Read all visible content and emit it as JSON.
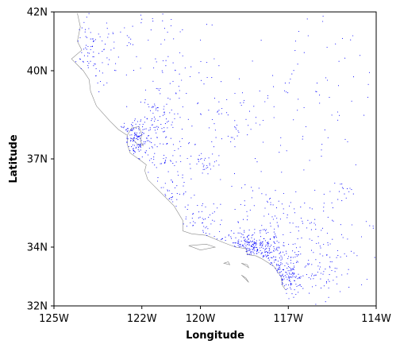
{
  "chart_data": {
    "type": "scatter",
    "title": "",
    "xlabel": "Longitude",
    "ylabel": "Latitude",
    "xlim": [
      -125,
      -114
    ],
    "ylim": [
      32,
      42
    ],
    "xticks": [
      {
        "value": -125,
        "label": "125W"
      },
      {
        "value": -122,
        "label": "122W"
      },
      {
        "value": -120,
        "label": "120W"
      },
      {
        "value": -117,
        "label": "117W"
      },
      {
        "value": -114,
        "label": "114W"
      }
    ],
    "yticks": [
      {
        "value": 32,
        "label": "32N"
      },
      {
        "value": 34,
        "label": "34N"
      },
      {
        "value": 37,
        "label": "37N"
      },
      {
        "value": 40,
        "label": "40N"
      },
      {
        "value": 42,
        "label": "42N"
      }
    ],
    "grid": false,
    "legend": "none",
    "colors": {
      "points": "#0000ff",
      "coastline": "#8a8a8a",
      "axes": "#000000",
      "background": "#ffffff"
    },
    "coastline": [
      [
        -124.2,
        41.95
      ],
      [
        -124.1,
        41.5
      ],
      [
        -124.2,
        41.0
      ],
      [
        -124.05,
        40.7
      ],
      [
        -124.4,
        40.4
      ],
      [
        -124.0,
        40.0
      ],
      [
        -123.8,
        39.7
      ],
      [
        -123.75,
        39.3
      ],
      [
        -123.55,
        38.8
      ],
      [
        -123.1,
        38.3
      ],
      [
        -122.8,
        38.0
      ],
      [
        -122.5,
        37.8
      ],
      [
        -122.5,
        37.5
      ],
      [
        -122.4,
        37.2
      ],
      [
        -122.05,
        36.95
      ],
      [
        -121.85,
        36.8
      ],
      [
        -121.9,
        36.6
      ],
      [
        -121.8,
        36.3
      ],
      [
        -121.3,
        35.8
      ],
      [
        -120.9,
        35.4
      ],
      [
        -120.6,
        34.9
      ],
      [
        -120.6,
        34.55
      ],
      [
        -120.3,
        34.45
      ],
      [
        -119.8,
        34.4
      ],
      [
        -119.2,
        34.15
      ],
      [
        -118.8,
        34.0
      ],
      [
        -118.45,
        33.95
      ],
      [
        -118.4,
        33.75
      ],
      [
        -118.1,
        33.7
      ],
      [
        -117.9,
        33.6
      ],
      [
        -117.5,
        33.35
      ],
      [
        -117.25,
        33.0
      ],
      [
        -117.2,
        32.7
      ],
      [
        -117.1,
        32.55
      ]
    ],
    "bay": [
      [
        -122.5,
        37.8
      ],
      [
        -122.35,
        38.05
      ],
      [
        -122.1,
        38.1
      ],
      [
        -122.0,
        37.85
      ],
      [
        -122.05,
        37.6
      ],
      [
        -121.95,
        37.45
      ],
      [
        -122.15,
        37.5
      ],
      [
        -122.35,
        37.7
      ]
    ],
    "islands": [
      [
        [
          -120.4,
          34.05
        ],
        [
          -119.8,
          34.1
        ],
        [
          -119.5,
          34.0
        ],
        [
          -120.0,
          33.9
        ],
        [
          -120.4,
          34.05
        ]
      ],
      [
        [
          -119.2,
          33.45
        ],
        [
          -119.05,
          33.5
        ],
        [
          -119.0,
          33.4
        ],
        [
          -119.2,
          33.45
        ]
      ],
      [
        [
          -118.6,
          33.45
        ],
        [
          -118.4,
          33.4
        ],
        [
          -118.35,
          33.3
        ],
        [
          -118.6,
          33.45
        ]
      ],
      [
        [
          -118.6,
          33.05
        ],
        [
          -118.45,
          32.95
        ],
        [
          -118.35,
          32.8
        ],
        [
          -118.55,
          33.0
        ],
        [
          -118.6,
          33.05
        ]
      ]
    ],
    "clusters": [
      {
        "lon": -118.3,
        "lat": 33.9,
        "sd_lon": 0.55,
        "sd_lat": 0.3,
        "count": 220
      },
      {
        "lon": -117.3,
        "lat": 33.2,
        "sd_lon": 0.4,
        "sd_lat": 0.35,
        "count": 90
      },
      {
        "lon": -117.0,
        "lat": 32.85,
        "sd_lon": 0.3,
        "sd_lat": 0.25,
        "count": 70
      },
      {
        "lon": -122.2,
        "lat": 37.7,
        "sd_lon": 0.3,
        "sd_lat": 0.35,
        "count": 130
      },
      {
        "lon": -121.6,
        "lat": 38.4,
        "sd_lon": 0.35,
        "sd_lat": 0.35,
        "count": 60
      },
      {
        "lon": -121.4,
        "lat": 37.0,
        "sd_lon": 0.55,
        "sd_lat": 0.5,
        "count": 70
      },
      {
        "lon": -119.8,
        "lat": 36.8,
        "sd_lon": 0.25,
        "sd_lat": 0.2,
        "count": 30
      },
      {
        "lon": -120.9,
        "lat": 35.7,
        "sd_lon": 0.35,
        "sd_lat": 0.3,
        "count": 30
      },
      {
        "lon": -120.0,
        "lat": 34.8,
        "sd_lon": 0.45,
        "sd_lat": 0.4,
        "count": 50
      },
      {
        "lon": -115.8,
        "lat": 33.1,
        "sd_lon": 0.5,
        "sd_lat": 0.4,
        "count": 50
      },
      {
        "lon": -115.0,
        "lat": 35.9,
        "sd_lon": 0.35,
        "sd_lat": 0.2,
        "count": 18
      },
      {
        "lon": -123.7,
        "lat": 40.5,
        "sd_lon": 0.45,
        "sd_lat": 0.6,
        "count": 80
      },
      {
        "lon": -122.2,
        "lat": 41.2,
        "sd_lon": 0.8,
        "sd_lat": 0.5,
        "count": 40
      },
      {
        "lon": -120.7,
        "lat": 39.5,
        "sd_lon": 0.8,
        "sd_lat": 0.8,
        "count": 60
      },
      {
        "lon": -119.0,
        "lat": 38.0,
        "sd_lon": 0.9,
        "sd_lat": 0.8,
        "count": 60
      },
      {
        "lon": -117.5,
        "lat": 35.0,
        "sd_lon": 0.9,
        "sd_lat": 0.6,
        "count": 110
      },
      {
        "lon": -116.0,
        "lat": 34.0,
        "sd_lon": 0.9,
        "sd_lat": 0.6,
        "count": 70
      },
      {
        "lon": -116.5,
        "lat": 39.0,
        "sd_lon": 1.2,
        "sd_lat": 1.6,
        "count": 80
      }
    ]
  }
}
